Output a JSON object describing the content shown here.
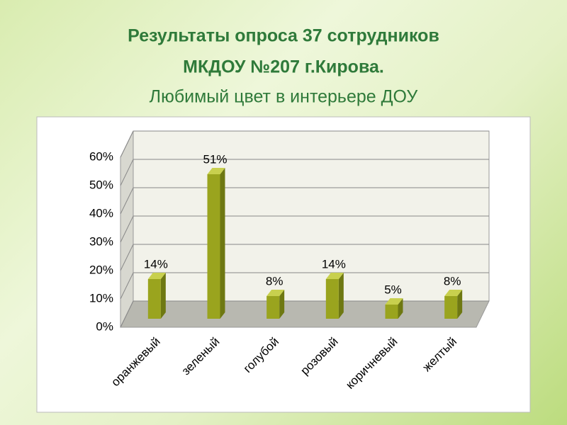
{
  "chart_data": {
    "type": "bar3d",
    "title": [
      "Результаты опроса 37 сотрудников",
      "МКДОУ №207 г.Кирова."
    ],
    "subtitle": "Любимый цвет в интерьере ДОУ",
    "categories": [
      "оранжевый",
      "зеленый",
      "голубой",
      "розовый",
      "коричневый",
      "желтый"
    ],
    "values": [
      14,
      51,
      8,
      14,
      5,
      8
    ],
    "value_labels": [
      "14%",
      "51%",
      "8%",
      "14%",
      "5%",
      "8%"
    ],
    "color": "#9aa41e",
    "ylim": [
      0,
      60
    ],
    "yticks": [
      {
        "value": 0,
        "label": "0%"
      },
      {
        "value": 10,
        "label": "10%"
      },
      {
        "value": 20,
        "label": "20%"
      },
      {
        "value": 30,
        "label": "30%"
      },
      {
        "value": 40,
        "label": "40%"
      },
      {
        "value": 50,
        "label": "50%"
      },
      {
        "value": 60,
        "label": "60%"
      }
    ],
    "grid": true
  }
}
